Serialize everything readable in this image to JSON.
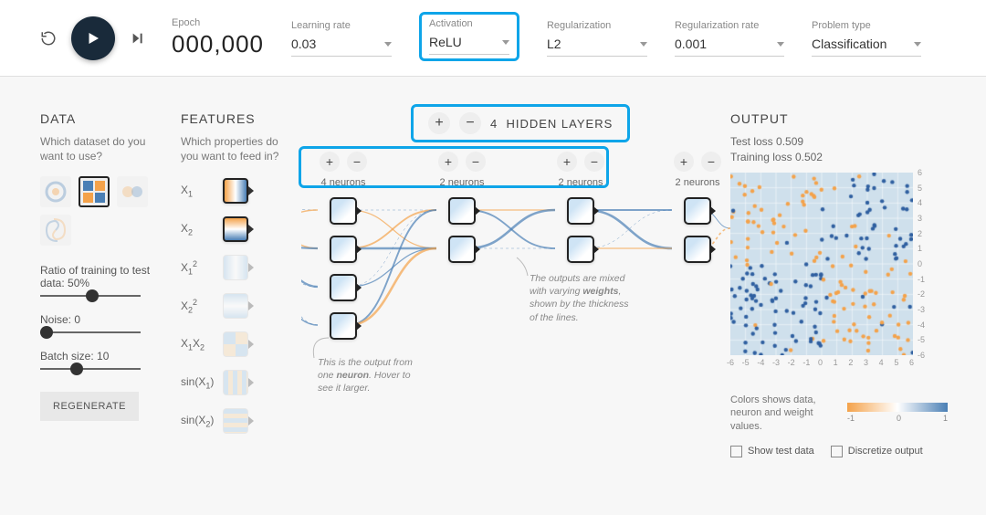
{
  "colors": {
    "accent": "#0ea5e9",
    "orange": "#f4a24a",
    "blue": "#4a7fb5",
    "play_bg": "#192a3a",
    "panel_bg": "#f7f7f7"
  },
  "topbar": {
    "epoch_label": "Epoch",
    "epoch_value": "000,000",
    "params": [
      {
        "key": "learning_rate",
        "label": "Learning rate",
        "value": "0.03"
      },
      {
        "key": "activation",
        "label": "Activation",
        "value": "ReLU",
        "highlighted": true
      },
      {
        "key": "regularization",
        "label": "Regularization",
        "value": "L2"
      },
      {
        "key": "reg_rate",
        "label": "Regularization rate",
        "value": "0.001"
      },
      {
        "key": "problem_type",
        "label": "Problem type",
        "value": "Classification"
      }
    ]
  },
  "data_panel": {
    "title": "DATA",
    "subtitle": "Which dataset do you want to use?",
    "datasets": [
      {
        "key": "circle",
        "active": false
      },
      {
        "key": "xor",
        "active": true
      },
      {
        "key": "gauss",
        "active": false
      },
      {
        "key": "spiral",
        "active": false
      }
    ],
    "sliders": [
      {
        "key": "ratio",
        "label": "Ratio of training to test data:  50%",
        "value_pct": 50
      },
      {
        "key": "noise",
        "label": "Noise:  0",
        "value_pct": 0
      },
      {
        "key": "batch",
        "label": "Batch size:  10",
        "value_pct": 33
      }
    ],
    "regen_label": "REGENERATE"
  },
  "features_panel": {
    "title": "FEATURES",
    "subtitle": "Which properties do you want to feed in?",
    "features": [
      {
        "key": "x1",
        "label_html": "X<sub>1</sub>",
        "active": true
      },
      {
        "key": "x2",
        "label_html": "X<sub>2</sub>",
        "active": true
      },
      {
        "key": "x1sq",
        "label_html": "X<sub>1</sub><sup>2</sup>",
        "active": false
      },
      {
        "key": "x2sq",
        "label_html": "X<sub>2</sub><sup>2</sup>",
        "active": false
      },
      {
        "key": "x1x2",
        "label_html": "X<sub>1</sub>X<sub>2</sub>",
        "active": false
      },
      {
        "key": "sinx1",
        "label_html": "sin(X<sub>1</sub>)",
        "active": false
      },
      {
        "key": "sinx2",
        "label_html": "sin(X<sub>2</sub>)",
        "active": false
      }
    ]
  },
  "network": {
    "hidden_layers_count": 4,
    "hidden_layers_label": "HIDDEN LAYERS",
    "columns": [
      {
        "neurons": 4,
        "label": "4 neurons"
      },
      {
        "neurons": 2,
        "label": "2 neurons"
      },
      {
        "neurons": 2,
        "label": "2 neurons"
      },
      {
        "neurons": 2,
        "label": "2 neurons"
      }
    ],
    "annotation_neuron": "This is the output from one <strong>neuron</strong>. Hover to see it larger.",
    "annotation_weights": "The outputs are <em>mixed</em> with varying <strong>weights</strong>, shown by the thickness of the lines.",
    "edge_colors": {
      "pos": "#4a7fb5",
      "neg": "#f4a24a"
    }
  },
  "output_panel": {
    "title": "OUTPUT",
    "test_loss_label": "Test loss",
    "test_loss": "0.509",
    "train_loss_label": "Training loss",
    "train_loss": "0.502",
    "plot": {
      "background": "#cfe0ec",
      "xlim": [
        -6,
        6
      ],
      "ylim": [
        -6,
        6
      ],
      "ticks": [
        -6,
        -5,
        -4,
        -3,
        -2,
        -1,
        0,
        1,
        2,
        3,
        4,
        5,
        6
      ],
      "point_radius": 2.2,
      "n_points": 240,
      "class_colors": {
        "a": "#f4a24a",
        "b": "#2f5fa0"
      }
    },
    "legend_text": "Colors shows data, neuron and weight values.",
    "legend_ticks": [
      "-1",
      "0",
      "1"
    ],
    "checkboxes": [
      {
        "key": "show_test",
        "label": "Show test data",
        "checked": false
      },
      {
        "key": "discretize",
        "label": "Discretize output",
        "checked": false
      }
    ]
  }
}
